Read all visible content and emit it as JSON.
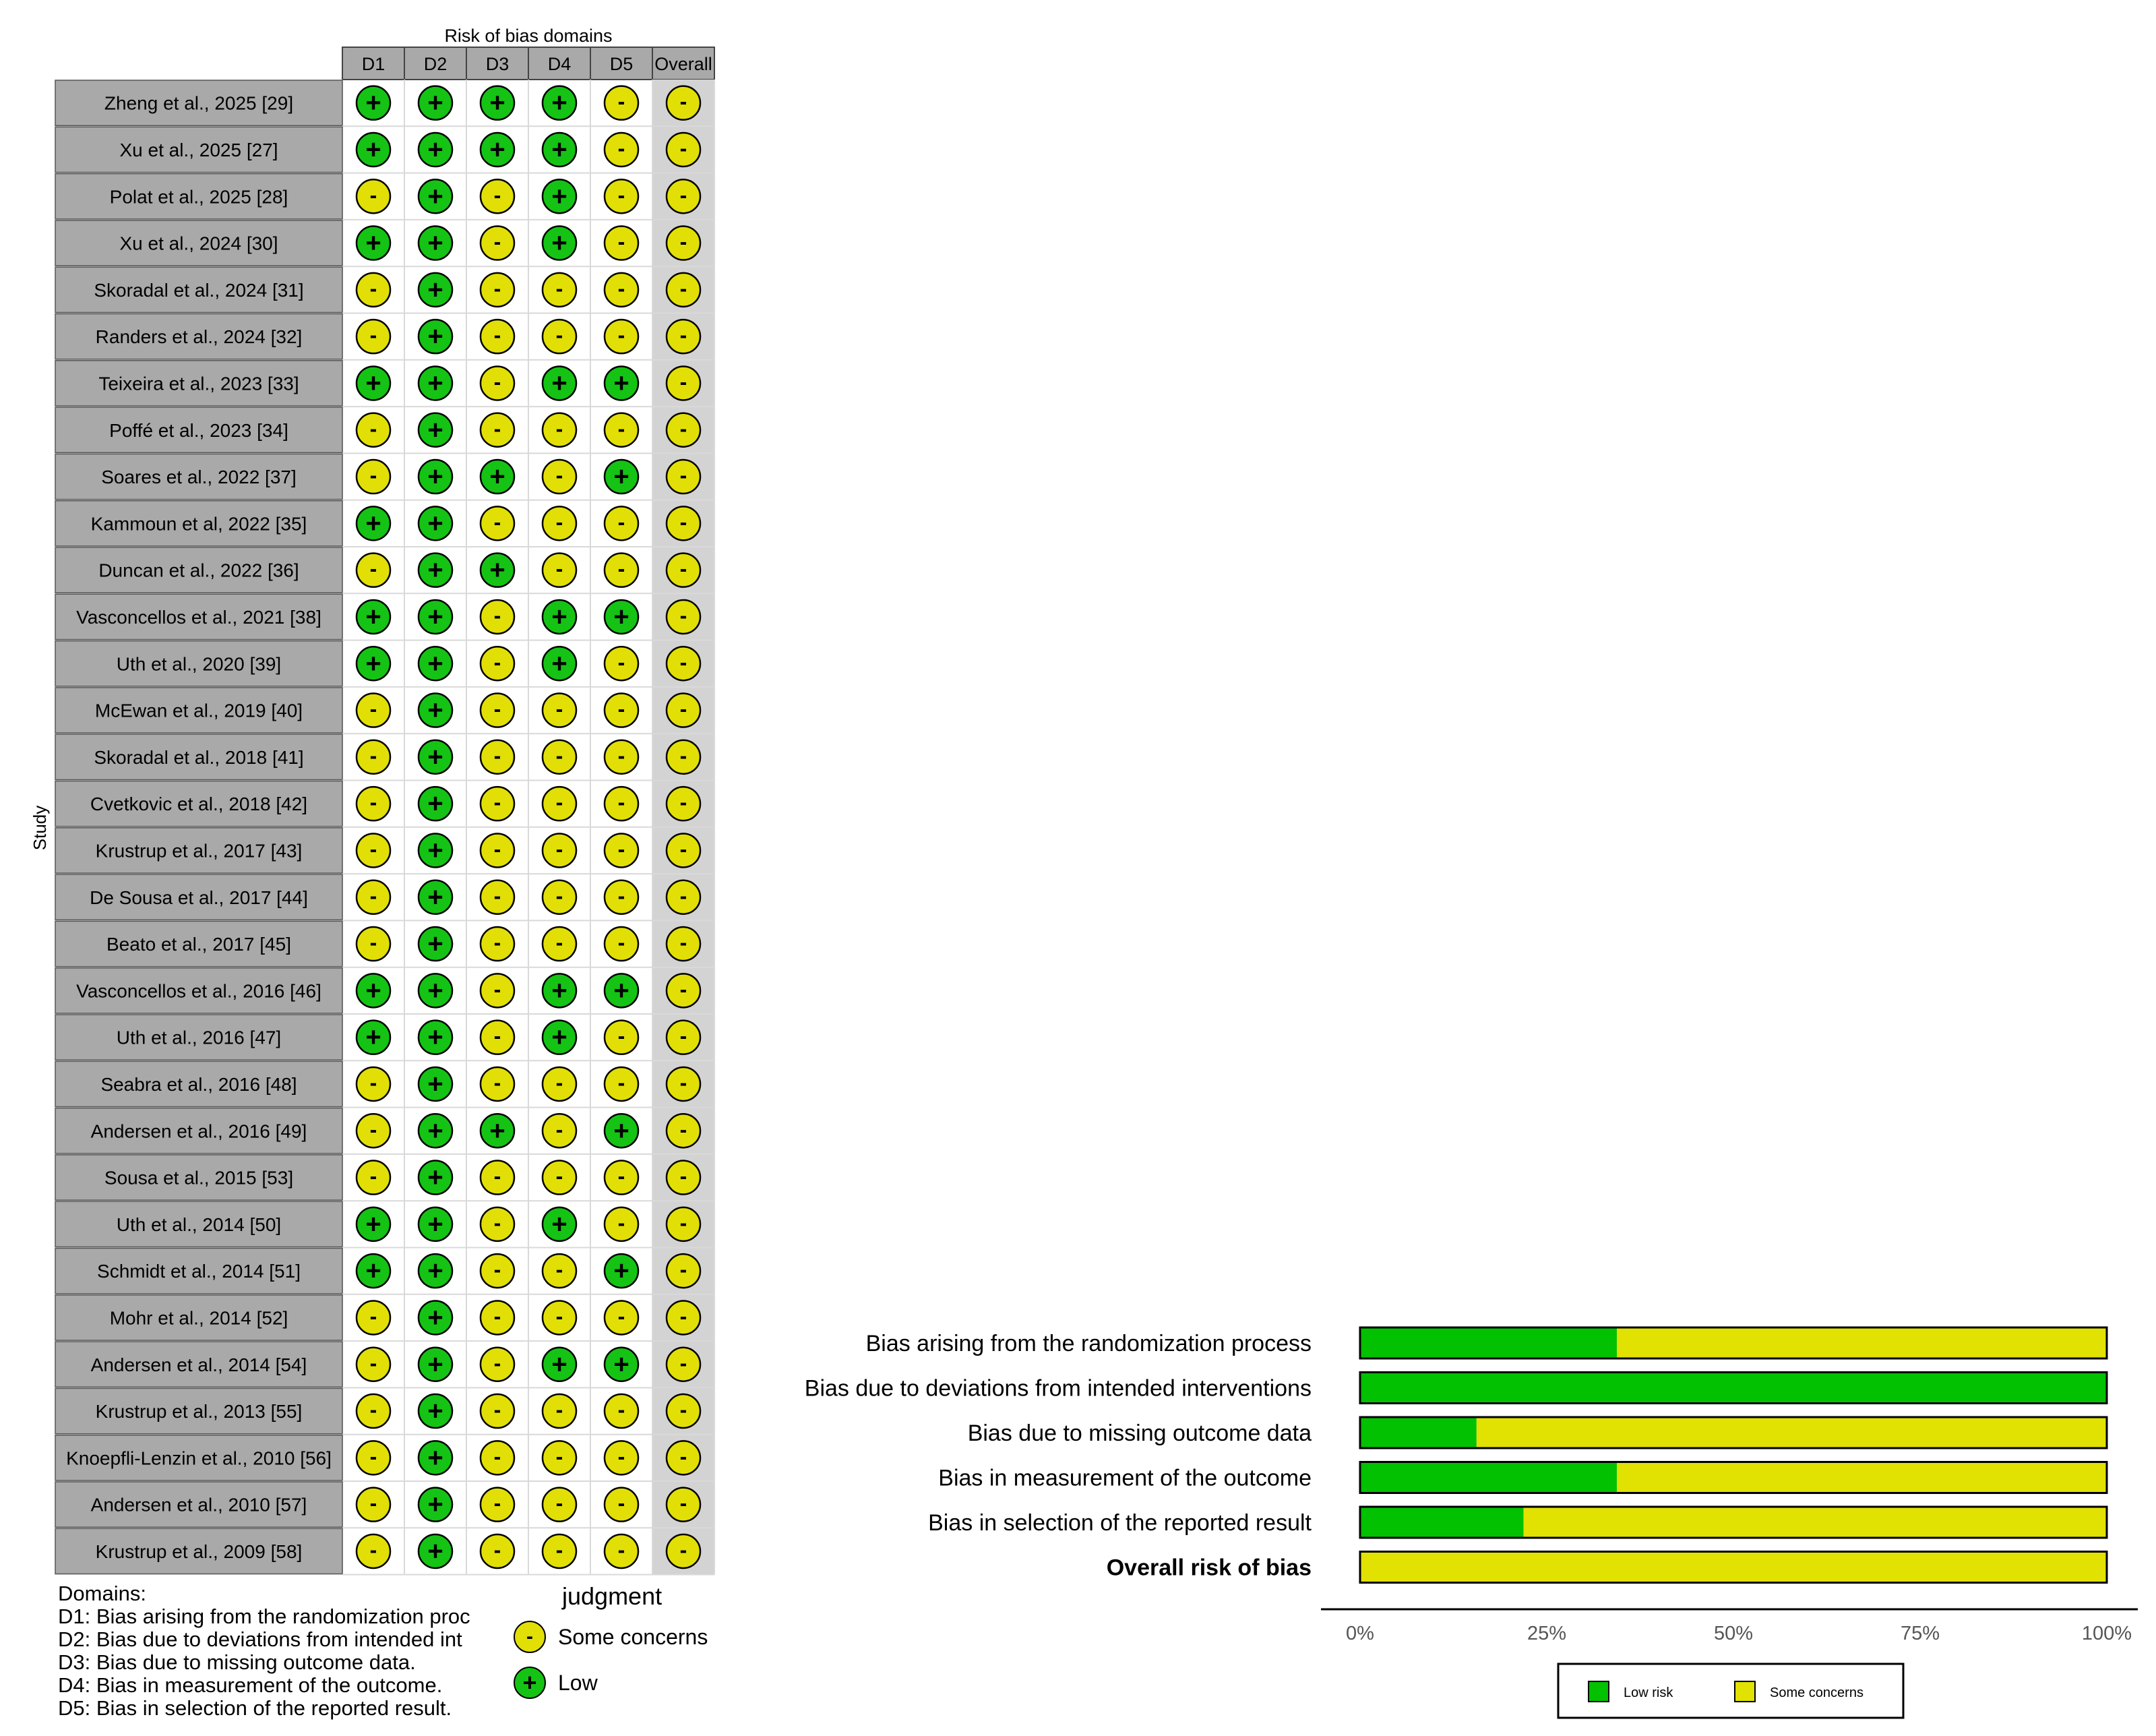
{
  "chart_data": [
    {
      "type": "table",
      "title": "Risk of bias domains",
      "ylabel": "Study",
      "domains": [
        "D1",
        "D2",
        "D3",
        "D4",
        "D5",
        "Overall"
      ],
      "studies": [
        "Zheng et al., 2025 [29]",
        "Xu et al., 2025 [27]",
        "Polat et al., 2025 [28]",
        "Xu et al., 2024 [30]",
        "Skoradal et al., 2024 [31]",
        "Randers et al., 2024 [32]",
        "Teixeira et al., 2023 [33]",
        "Poffé et al., 2023 [34]",
        "Soares et al., 2022 [37]",
        "Kammoun et al, 2022 [35]",
        "Duncan et al., 2022 [36]",
        "Vasconcellos et al., 2021 [38]",
        "Uth et al., 2020 [39]",
        "McEwan et al., 2019 [40]",
        "Skoradal et al., 2018 [41]",
        "Cvetkovic et al., 2018 [42]",
        "Krustrup et al., 2017 [43]",
        "De Sousa et al., 2017 [44]",
        "Beato et al., 2017 [45]",
        "Vasconcellos et al., 2016 [46]",
        "Uth et al., 2016 [47]",
        "Seabra et al., 2016 [48]",
        "Andersen et al., 2016 [49]",
        "Sousa et al., 2015 [53]",
        "Uth et al., 2014 [50]",
        "Schmidt et al., 2014 [51]",
        "Mohr et al., 2014 [52]",
        "Andersen et al., 2014 [54]",
        "Krustrup et al., 2013 [55]",
        "Knoepfli-Lenzin et al., 2010 [56]",
        "Andersen et al., 2010 [57]",
        "Krustrup et al., 2009 [58]"
      ],
      "judgments": [
        [
          "L",
          "L",
          "L",
          "L",
          "S",
          "S"
        ],
        [
          "L",
          "L",
          "L",
          "L",
          "S",
          "S"
        ],
        [
          "S",
          "L",
          "S",
          "L",
          "S",
          "S"
        ],
        [
          "L",
          "L",
          "S",
          "L",
          "S",
          "S"
        ],
        [
          "S",
          "L",
          "S",
          "S",
          "S",
          "S"
        ],
        [
          "S",
          "L",
          "S",
          "S",
          "S",
          "S"
        ],
        [
          "L",
          "L",
          "S",
          "L",
          "L",
          "S"
        ],
        [
          "S",
          "L",
          "S",
          "S",
          "S",
          "S"
        ],
        [
          "S",
          "L",
          "L",
          "S",
          "L",
          "S"
        ],
        [
          "L",
          "L",
          "S",
          "S",
          "S",
          "S"
        ],
        [
          "S",
          "L",
          "L",
          "S",
          "S",
          "S"
        ],
        [
          "L",
          "L",
          "S",
          "L",
          "L",
          "S"
        ],
        [
          "L",
          "L",
          "S",
          "L",
          "S",
          "S"
        ],
        [
          "S",
          "L",
          "S",
          "S",
          "S",
          "S"
        ],
        [
          "S",
          "L",
          "S",
          "S",
          "S",
          "S"
        ],
        [
          "S",
          "L",
          "S",
          "S",
          "S",
          "S"
        ],
        [
          "S",
          "L",
          "S",
          "S",
          "S",
          "S"
        ],
        [
          "S",
          "L",
          "S",
          "S",
          "S",
          "S"
        ],
        [
          "S",
          "L",
          "S",
          "S",
          "S",
          "S"
        ],
        [
          "L",
          "L",
          "S",
          "L",
          "L",
          "S"
        ],
        [
          "L",
          "L",
          "S",
          "L",
          "S",
          "S"
        ],
        [
          "S",
          "L",
          "S",
          "S",
          "S",
          "S"
        ],
        [
          "S",
          "L",
          "L",
          "S",
          "L",
          "S"
        ],
        [
          "S",
          "L",
          "S",
          "S",
          "S",
          "S"
        ],
        [
          "L",
          "L",
          "S",
          "L",
          "S",
          "S"
        ],
        [
          "L",
          "L",
          "S",
          "S",
          "L",
          "S"
        ],
        [
          "S",
          "L",
          "S",
          "S",
          "S",
          "S"
        ],
        [
          "S",
          "L",
          "S",
          "L",
          "L",
          "S"
        ],
        [
          "S",
          "L",
          "S",
          "S",
          "S",
          "S"
        ],
        [
          "S",
          "L",
          "S",
          "S",
          "S",
          "S"
        ],
        [
          "S",
          "L",
          "S",
          "S",
          "S",
          "S"
        ],
        [
          "S",
          "L",
          "S",
          "S",
          "S",
          "S"
        ]
      ],
      "symbols": {
        "L": "+",
        "S": "-"
      },
      "domains_caption": {
        "title": "Domains:",
        "items": [
          "D1: Bias arising from the randomization proc",
          "D2: Bias due to deviations from intended int",
          "D3: Bias due to missing outcome data.",
          "D4: Bias in measurement of the outcome.",
          "D5: Bias in selection of the reported result."
        ]
      },
      "legend": {
        "title": "judgment",
        "items": [
          {
            "key": "S",
            "label": "Some concerns"
          },
          {
            "key": "L",
            "label": "Low"
          }
        ]
      }
    },
    {
      "type": "bar",
      "orientation": "horizontal",
      "stacked": true,
      "categories": [
        "Bias arising from the randomization process",
        "Bias due to deviations from intended interventions",
        "Bias due to missing outcome data",
        "Bias in measurement of the outcome",
        "Bias in selection of the reported result",
        "Overall risk of bias"
      ],
      "bold_category": "Overall risk of bias",
      "series": [
        {
          "name": "Low risk",
          "values": [
            34.4,
            100,
            15.6,
            34.4,
            21.9,
            0
          ]
        },
        {
          "name": "Some concerns",
          "values": [
            65.6,
            0,
            84.4,
            65.6,
            78.1,
            100
          ]
        }
      ],
      "xlim": [
        0,
        100
      ],
      "xticks": [
        "0%",
        "25%",
        "50%",
        "75%",
        "100%"
      ],
      "legend_position": "bottom"
    }
  ],
  "colors": {
    "low": "#15c315",
    "some_concerns": "#e2df07",
    "label_panel": "#a9a9a9",
    "overall_column": "#d3d3d3",
    "bar_low": "#02c100",
    "bar_some": "#e1e102"
  }
}
